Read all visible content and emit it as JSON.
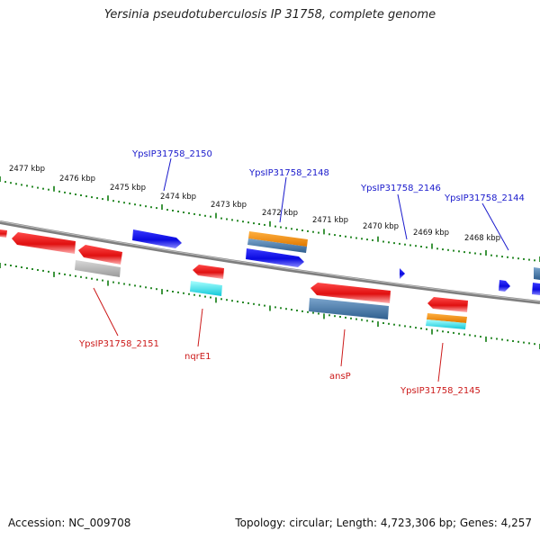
{
  "title": "Yersinia pseudotuberculosis IP 31758, complete genome",
  "footer": {
    "accession": "Accession: NC_009708",
    "summary": "Topology: circular; Length: 4,723,306 bp; Genes: 4,257"
  },
  "scale_labels": [
    "2477 kbp",
    "2476 kbp",
    "2475 kbp",
    "2474 kbp",
    "2473 kbp",
    "2472 kbp",
    "2471 kbp",
    "2470 kbp",
    "2469 kbp",
    "2468 kbp"
  ],
  "top_gene_labels": [
    "YpsIP31758_2150",
    "YpsIP31758_2148",
    "YpsIP31758_2146",
    "YpsIP31758_2144"
  ],
  "bottom_gene_labels": [
    "YpsIP31758_2151",
    "nqrE1",
    "ansP",
    "YpsIP31758_2145"
  ],
  "colors": {
    "backbone": "#8a8a8a",
    "scale_ticks": "#2a8a2a",
    "forward_gene": "#1010ee",
    "reverse_gene": "#ee1010",
    "rna_orange": "#ff9a1a",
    "rna_steel": "#4a7aaa",
    "rna_cyan": "#22dddd",
    "rna_grey": "#aaaaaa",
    "top_label": "#1a1acc",
    "bottom_label": "#cc1a1a"
  }
}
